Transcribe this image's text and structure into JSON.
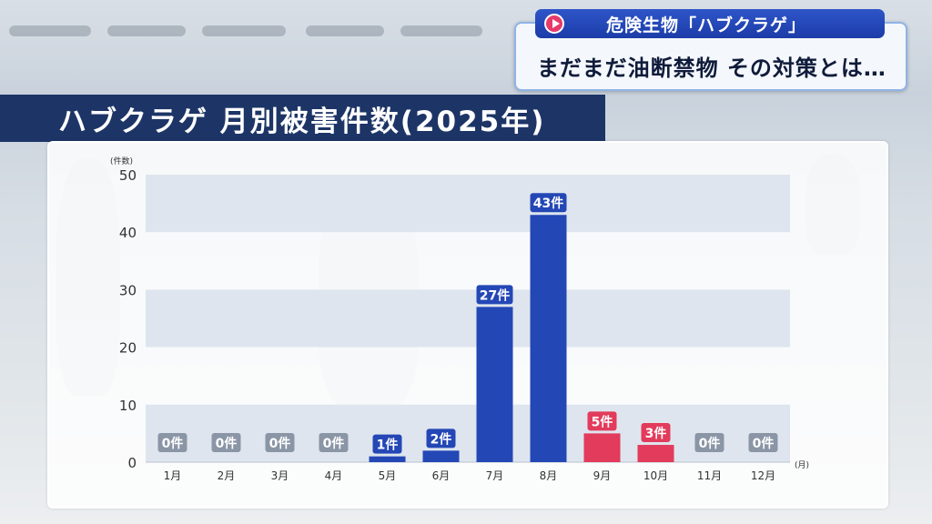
{
  "ticker": {
    "tag": "危険生物「ハブクラゲ」",
    "headline": "まだまだ油断禁物 その対策とは…"
  },
  "banner": {
    "title": "ハブクラゲ 月別被害件数(2025年)"
  },
  "colors": {
    "bar_blue": "#2447b6",
    "bar_red": "#e23b5b",
    "label_gray": "#8a95a6",
    "band": "#dfe5ee",
    "banner": "#1d3566"
  },
  "chart_data": {
    "type": "bar",
    "title": "ハブクラゲ 月別被害件数(2025年)",
    "ylabel": "(件数)",
    "xlabel": "(月)",
    "ylim": [
      0,
      50
    ],
    "yticks": [
      0,
      10,
      20,
      30,
      40,
      50
    ],
    "ytick_labels": [
      "0",
      "10",
      "20",
      "30",
      "40",
      "50"
    ],
    "categories": [
      "1月",
      "2月",
      "3月",
      "4月",
      "5月",
      "6月",
      "7月",
      "8月",
      "9月",
      "10月",
      "11月",
      "12月"
    ],
    "values": [
      0,
      0,
      0,
      0,
      1,
      2,
      27,
      43,
      5,
      3,
      0,
      0
    ],
    "data_labels": [
      "0件",
      "0件",
      "0件",
      "0件",
      "1件",
      "2件",
      "27件",
      "43件",
      "5件",
      "3件",
      "0件",
      "0件"
    ],
    "bar_color_keys": [
      "gray",
      "gray",
      "gray",
      "gray",
      "blue",
      "blue",
      "blue",
      "blue",
      "red",
      "red",
      "gray",
      "gray"
    ],
    "grid": "alternating horizontal bands"
  }
}
